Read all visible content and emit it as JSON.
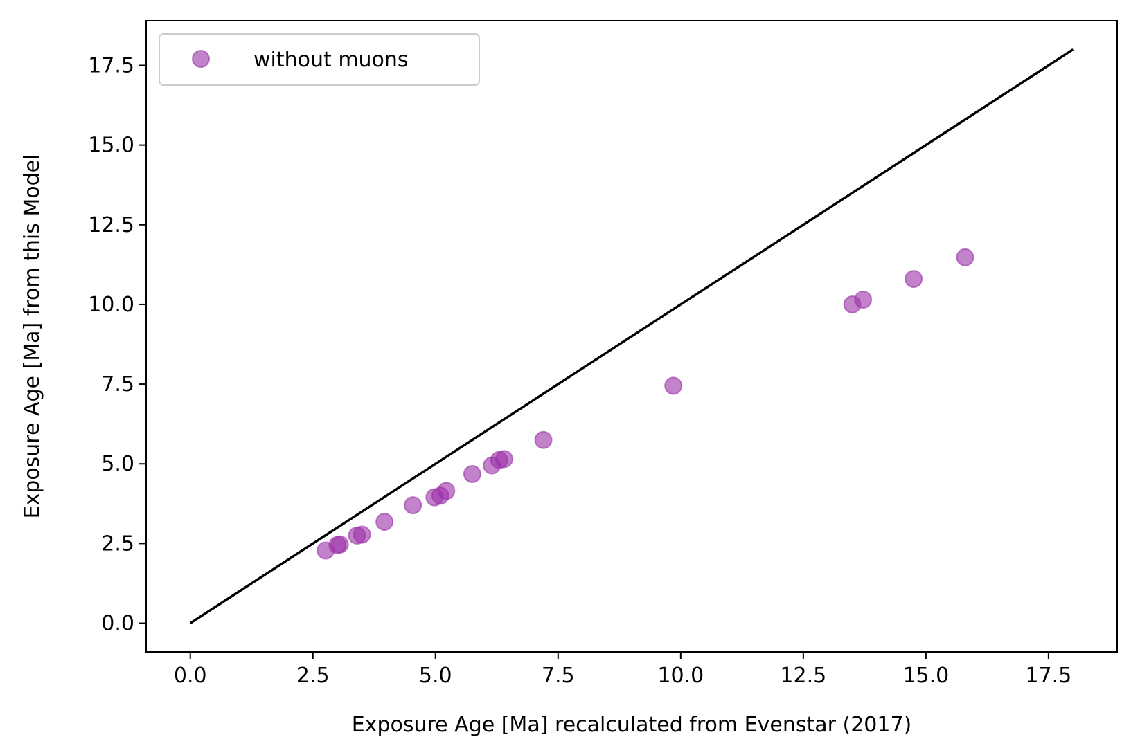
{
  "chart_data": {
    "type": "scatter",
    "title": "",
    "xlabel": "Exposure Age [Ma] recalculated from Evenstar (2017)",
    "ylabel": "Exposure Age [Ma] from this Model",
    "xlim": [
      -0.9,
      18.9
    ],
    "ylim": [
      -0.9,
      18.9
    ],
    "x_ticks": [
      "0.0",
      "2.5",
      "5.0",
      "7.5",
      "10.0",
      "12.5",
      "15.0",
      "17.5"
    ],
    "y_ticks": [
      "0.0",
      "2.5",
      "5.0",
      "7.5",
      "10.0",
      "12.5",
      "15.0",
      "17.5"
    ],
    "grid": false,
    "legend": {
      "position": "top-left",
      "entries": [
        "without muons"
      ]
    },
    "colors": {
      "series": "#9b30a8",
      "reference_line": "#000000"
    },
    "reference_line": {
      "x": [
        0,
        18
      ],
      "y": [
        0,
        18
      ]
    },
    "series": [
      {
        "name": "without muons",
        "x": [
          2.76,
          3.0,
          3.05,
          3.4,
          3.5,
          3.96,
          4.54,
          4.98,
          5.1,
          5.22,
          5.75,
          6.15,
          6.3,
          6.4,
          7.2,
          9.85,
          13.5,
          13.72,
          14.75,
          15.8
        ],
        "y": [
          2.28,
          2.45,
          2.47,
          2.75,
          2.78,
          3.18,
          3.7,
          3.95,
          4.0,
          4.15,
          4.68,
          4.95,
          5.12,
          5.15,
          5.75,
          7.45,
          10.0,
          10.15,
          10.8,
          11.48
        ]
      }
    ]
  }
}
